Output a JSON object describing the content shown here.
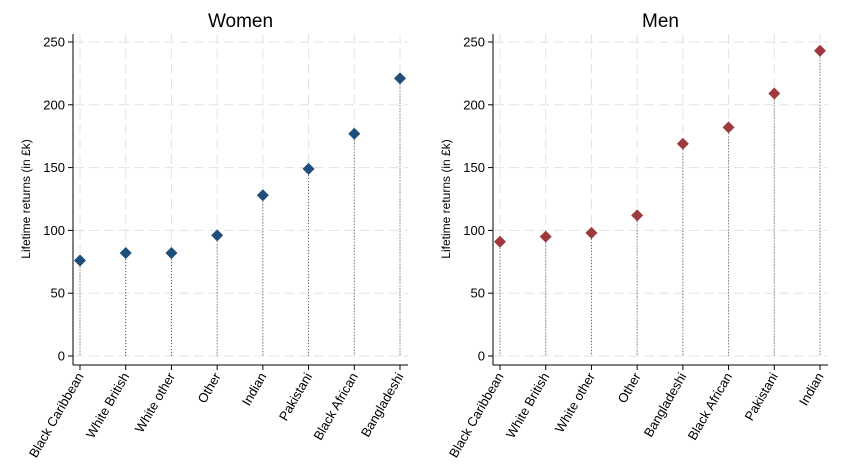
{
  "chart_data": [
    {
      "type": "scatter",
      "title": "Women",
      "xlabel": "",
      "ylabel": "Lifetime  returns (in £k)",
      "ylim": [
        0,
        250
      ],
      "yticks": [
        0,
        50,
        100,
        150,
        200,
        250
      ],
      "grid": true,
      "color": "#1f4e79",
      "marker": "diamond",
      "categories": [
        "Black Caribbean",
        "White British",
        "White other",
        "Other",
        "Indian",
        "Pakistani",
        "Black African",
        "Bangladeshi"
      ],
      "values": [
        76,
        82,
        82,
        96,
        128,
        149,
        177,
        221
      ]
    },
    {
      "type": "scatter",
      "title": "Men",
      "xlabel": "",
      "ylabel": "Lifetime  returns (in £k)",
      "ylim": [
        0,
        250
      ],
      "yticks": [
        0,
        50,
        100,
        150,
        200,
        250
      ],
      "grid": true,
      "color": "#9e3a3d",
      "marker": "diamond",
      "categories": [
        "Black Caribbean",
        "White British",
        "White other",
        "Other",
        "Bangladeshi",
        "Black African",
        "Pakistani",
        "Indian"
      ],
      "values": [
        91,
        95,
        98,
        112,
        169,
        182,
        209,
        243
      ]
    }
  ]
}
